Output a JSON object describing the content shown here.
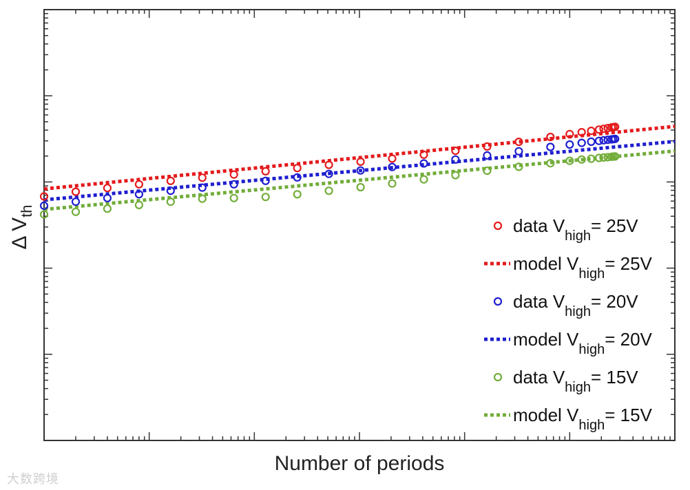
{
  "chart_data": {
    "type": "line",
    "xlabel": "Number of periods",
    "ylabel": {
      "main": "Δ V",
      "sub": "th"
    },
    "xscale": "log",
    "yscale": "log",
    "xlim": [
      1,
      1000000
    ],
    "ylim": [
      0.001,
      100
    ],
    "grid": false,
    "legend_position": "bottom-right",
    "x_data": [
      1,
      2,
      4,
      8,
      16,
      32,
      64,
      128,
      256,
      512,
      1024,
      2048,
      4096,
      8192,
      16384,
      32768,
      65536,
      100000,
      130000,
      160000,
      190000,
      210000,
      230000,
      250000,
      260000,
      270000
    ],
    "series": [
      {
        "name": "data Vhigh= 25V",
        "legend_label": {
          "pre": "data V",
          "sub": "high",
          "post": "= 25V"
        },
        "kind": "markers",
        "color": "#e41a1c",
        "values": [
          0.68,
          0.77,
          0.85,
          0.94,
          1.03,
          1.12,
          1.22,
          1.33,
          1.45,
          1.58,
          1.72,
          1.87,
          2.07,
          2.3,
          2.58,
          2.92,
          3.33,
          3.6,
          3.78,
          3.92,
          4.05,
          4.14,
          4.22,
          4.3,
          4.33,
          4.36
        ]
      },
      {
        "name": "model Vhigh= 25V",
        "legend_label": {
          "pre": "model V",
          "sub": "high",
          "post": "= 25V"
        },
        "kind": "dotted-line",
        "color": "#e41a1c",
        "model": {
          "a": 0.83,
          "b": 0.121
        }
      },
      {
        "name": "data Vhigh= 20V",
        "legend_label": {
          "pre": "data V",
          "sub": "high",
          "post": "= 20V"
        },
        "kind": "markers",
        "color": "#1f1fd0",
        "values": [
          0.53,
          0.59,
          0.65,
          0.72,
          0.79,
          0.86,
          0.94,
          1.03,
          1.13,
          1.24,
          1.36,
          1.49,
          1.64,
          1.82,
          2.03,
          2.27,
          2.55,
          2.72,
          2.84,
          2.93,
          3.0,
          3.05,
          3.09,
          3.12,
          3.14,
          3.16
        ]
      },
      {
        "name": "model Vhigh= 20V",
        "legend_label": {
          "pre": "model V",
          "sub": "high",
          "post": "= 20V"
        },
        "kind": "dotted-line",
        "color": "#1f1fd0",
        "model": {
          "a": 0.62,
          "b": 0.113
        }
      },
      {
        "name": "data Vhigh= 15V",
        "legend_label": {
          "pre": "data V",
          "sub": "high",
          "post": "= 15V"
        },
        "kind": "markers",
        "color": "#72ad3a",
        "values": [
          0.42,
          0.45,
          0.49,
          0.54,
          0.59,
          0.64,
          0.65,
          0.67,
          0.72,
          0.79,
          0.87,
          0.96,
          1.07,
          1.2,
          1.35,
          1.5,
          1.65,
          1.76,
          1.82,
          1.86,
          1.9,
          1.92,
          1.94,
          1.96,
          1.97,
          1.98
        ]
      },
      {
        "name": "model Vhigh= 15V",
        "legend_label": {
          "pre": "model V",
          "sub": "high",
          "post": "= 15V"
        },
        "kind": "dotted-line",
        "color": "#72ad3a",
        "model": {
          "a": 0.48,
          "b": 0.113
        }
      }
    ]
  },
  "watermark": "大数跨境"
}
